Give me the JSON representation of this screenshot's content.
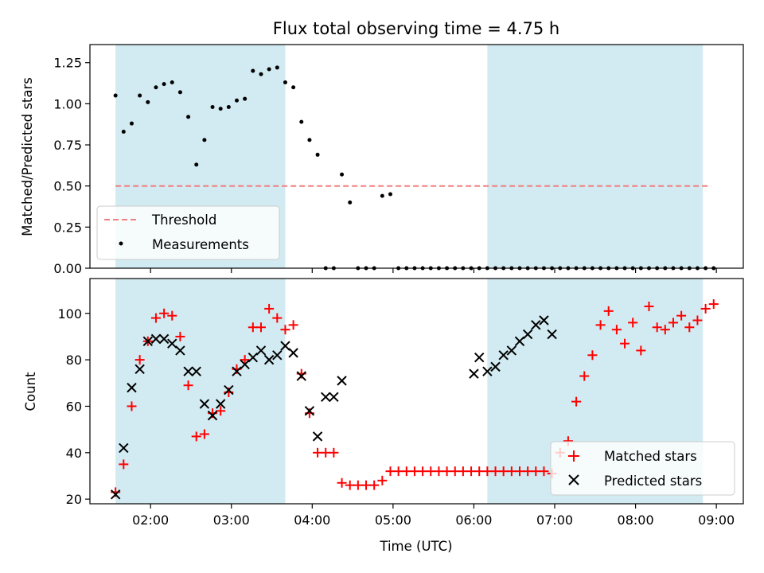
{
  "chart_data": [
    {
      "panel": "top",
      "type": "scatter",
      "title": "Flux total observing time = 4.75 h",
      "xlabel": "",
      "ylabel": "Matched/Predicted stars",
      "xlim": [
        "01:15",
        "09:20"
      ],
      "ylim": [
        0,
        1.36
      ],
      "yticks": [
        "0.00",
        "0.25",
        "0.50",
        "0.75",
        "1.00",
        "1.25"
      ],
      "xticks_labeled": false,
      "grid": false,
      "legend_position": "lower-left",
      "shaded_spans": [
        {
          "start": "01:34",
          "end": "03:40",
          "color": "#add8e6"
        },
        {
          "start": "06:10",
          "end": "08:50",
          "color": "#add8e6"
        }
      ],
      "threshold": {
        "name": "Threshold",
        "value": 0.5,
        "color": "#f08080",
        "style": "dashed",
        "x_start": "01:34",
        "x_end": "08:56"
      },
      "series": [
        {
          "name": "Measurements",
          "color": "#000000",
          "marker": "dot",
          "points": [
            [
              "01:34",
              1.05
            ],
            [
              "01:40",
              0.83
            ],
            [
              "01:46",
              0.88
            ],
            [
              "01:52",
              1.05
            ],
            [
              "01:58",
              1.01
            ],
            [
              "02:04",
              1.1
            ],
            [
              "02:10",
              1.12
            ],
            [
              "02:16",
              1.13
            ],
            [
              "02:22",
              1.07
            ],
            [
              "02:28",
              0.92
            ],
            [
              "02:34",
              0.63
            ],
            [
              "02:40",
              0.78
            ],
            [
              "02:46",
              0.98
            ],
            [
              "02:52",
              0.97
            ],
            [
              "02:58",
              0.98
            ],
            [
              "03:04",
              1.02
            ],
            [
              "03:10",
              1.03
            ],
            [
              "03:16",
              1.2
            ],
            [
              "03:22",
              1.18
            ],
            [
              "03:28",
              1.21
            ],
            [
              "03:34",
              1.22
            ],
            [
              "03:40",
              1.13
            ],
            [
              "03:46",
              1.1
            ],
            [
              "03:52",
              0.89
            ],
            [
              "03:58",
              0.78
            ],
            [
              "04:04",
              0.69
            ],
            [
              "04:10",
              0.0
            ],
            [
              "04:16",
              0.0
            ],
            [
              "04:22",
              0.57
            ],
            [
              "04:28",
              0.4
            ],
            [
              "04:34",
              0.0
            ],
            [
              "04:40",
              0.0
            ],
            [
              "04:46",
              0.0
            ],
            [
              "04:52",
              0.44
            ],
            [
              "04:58",
              0.45
            ],
            [
              "05:04",
              0.0
            ],
            [
              "05:10",
              0.0
            ],
            [
              "05:16",
              0.0
            ],
            [
              "05:22",
              0.0
            ],
            [
              "05:28",
              0.0
            ],
            [
              "05:34",
              0.0
            ],
            [
              "05:40",
              0.0
            ],
            [
              "05:46",
              0.0
            ],
            [
              "05:52",
              0.0
            ],
            [
              "05:58",
              0.0
            ],
            [
              "06:04",
              0.0
            ],
            [
              "06:10",
              0.0
            ],
            [
              "06:16",
              0.0
            ],
            [
              "06:22",
              0.0
            ],
            [
              "06:28",
              0.0
            ],
            [
              "06:34",
              0.0
            ],
            [
              "06:40",
              0.0
            ],
            [
              "06:46",
              0.0
            ],
            [
              "06:52",
              0.0
            ],
            [
              "06:58",
              0.0
            ],
            [
              "07:04",
              0.0
            ],
            [
              "07:10",
              0.0
            ],
            [
              "07:16",
              0.0
            ],
            [
              "07:22",
              0.0
            ],
            [
              "07:28",
              0.0
            ],
            [
              "07:34",
              0.0
            ],
            [
              "07:40",
              0.0
            ],
            [
              "07:46",
              0.0
            ],
            [
              "07:52",
              0.0
            ],
            [
              "07:58",
              0.0
            ],
            [
              "08:04",
              0.0
            ],
            [
              "08:10",
              0.0
            ],
            [
              "08:16",
              0.0
            ],
            [
              "08:22",
              0.0
            ],
            [
              "08:28",
              0.0
            ],
            [
              "08:34",
              0.0
            ],
            [
              "08:40",
              0.0
            ],
            [
              "08:46",
              0.0
            ],
            [
              "08:52",
              0.0
            ],
            [
              "08:58",
              0.0
            ]
          ]
        }
      ]
    },
    {
      "panel": "bottom",
      "type": "scatter",
      "title": "",
      "xlabel": "Time (UTC)",
      "ylabel": "Count",
      "xlim": [
        "01:15",
        "09:20"
      ],
      "ylim": [
        18,
        115
      ],
      "xticks": [
        "02:00",
        "03:00",
        "04:00",
        "05:00",
        "06:00",
        "07:00",
        "08:00",
        "09:00"
      ],
      "yticks": [
        "20",
        "40",
        "60",
        "80",
        "100"
      ],
      "grid": false,
      "legend_position": "lower-right",
      "shaded_spans": [
        {
          "start": "01:34",
          "end": "03:40",
          "color": "#add8e6"
        },
        {
          "start": "06:10",
          "end": "08:50",
          "color": "#add8e6"
        }
      ],
      "series": [
        {
          "name": "Matched stars",
          "color": "#ff0000",
          "marker": "plus",
          "points": [
            [
              "01:34",
              23
            ],
            [
              "01:40",
              35
            ],
            [
              "01:46",
              60
            ],
            [
              "01:52",
              80
            ],
            [
              "01:58",
              88
            ],
            [
              "02:04",
              98
            ],
            [
              "02:10",
              100
            ],
            [
              "02:16",
              99
            ],
            [
              "02:22",
              90
            ],
            [
              "02:28",
              69
            ],
            [
              "02:34",
              47
            ],
            [
              "02:40",
              48
            ],
            [
              "02:46",
              57
            ],
            [
              "02:52",
              58
            ],
            [
              "02:58",
              66
            ],
            [
              "03:04",
              76
            ],
            [
              "03:10",
              80
            ],
            [
              "03:16",
              94
            ],
            [
              "03:22",
              94
            ],
            [
              "03:28",
              102
            ],
            [
              "03:34",
              98
            ],
            [
              "03:40",
              93
            ],
            [
              "03:46",
              95
            ],
            [
              "03:52",
              74
            ],
            [
              "03:58",
              57
            ],
            [
              "04:04",
              40
            ],
            [
              "04:10",
              40
            ],
            [
              "04:16",
              40
            ],
            [
              "04:22",
              27
            ],
            [
              "04:28",
              26
            ],
            [
              "04:34",
              26
            ],
            [
              "04:40",
              26
            ],
            [
              "04:46",
              26
            ],
            [
              "04:52",
              28
            ],
            [
              "04:58",
              32
            ],
            [
              "05:04",
              32
            ],
            [
              "05:10",
              32
            ],
            [
              "05:16",
              32
            ],
            [
              "05:22",
              32
            ],
            [
              "05:28",
              32
            ],
            [
              "05:34",
              32
            ],
            [
              "05:40",
              32
            ],
            [
              "05:46",
              32
            ],
            [
              "05:52",
              32
            ],
            [
              "05:58",
              32
            ],
            [
              "06:04",
              32
            ],
            [
              "06:10",
              32
            ],
            [
              "06:16",
              32
            ],
            [
              "06:22",
              32
            ],
            [
              "06:28",
              32
            ],
            [
              "06:34",
              32
            ],
            [
              "06:40",
              32
            ],
            [
              "06:46",
              32
            ],
            [
              "06:52",
              32
            ],
            [
              "06:58",
              31
            ],
            [
              "07:04",
              40
            ],
            [
              "07:10",
              45
            ],
            [
              "07:16",
              62
            ],
            [
              "07:22",
              73
            ],
            [
              "07:28",
              82
            ],
            [
              "07:34",
              95
            ],
            [
              "07:40",
              101
            ],
            [
              "07:46",
              93
            ],
            [
              "07:52",
              87
            ],
            [
              "07:58",
              96
            ],
            [
              "08:04",
              84
            ],
            [
              "08:10",
              103
            ],
            [
              "08:16",
              94
            ],
            [
              "08:22",
              93
            ],
            [
              "08:28",
              96
            ],
            [
              "08:34",
              99
            ],
            [
              "08:40",
              94
            ],
            [
              "08:46",
              97
            ],
            [
              "08:52",
              102
            ],
            [
              "08:58",
              104
            ]
          ]
        },
        {
          "name": "Predicted stars",
          "color": "#000000",
          "marker": "x",
          "points": [
            [
              "01:34",
              22
            ],
            [
              "01:40",
              42
            ],
            [
              "01:46",
              68
            ],
            [
              "01:52",
              76
            ],
            [
              "01:58",
              88
            ],
            [
              "02:04",
              89
            ],
            [
              "02:10",
              89
            ],
            [
              "02:16",
              87
            ],
            [
              "02:22",
              84
            ],
            [
              "02:28",
              75
            ],
            [
              "02:34",
              75
            ],
            [
              "02:40",
              61
            ],
            [
              "02:46",
              56
            ],
            [
              "02:52",
              61
            ],
            [
              "02:58",
              67
            ],
            [
              "03:04",
              75
            ],
            [
              "03:10",
              78
            ],
            [
              "03:16",
              81
            ],
            [
              "03:22",
              84
            ],
            [
              "03:28",
              80
            ],
            [
              "03:34",
              82
            ],
            [
              "03:40",
              86
            ],
            [
              "03:46",
              83
            ],
            [
              "03:52",
              73
            ],
            [
              "03:58",
              58
            ],
            [
              "04:04",
              47
            ],
            [
              "04:10",
              64
            ],
            [
              "04:16",
              64
            ],
            [
              "04:22",
              71
            ],
            [
              "06:00",
              74
            ],
            [
              "06:04",
              81
            ],
            [
              "06:10",
              75
            ],
            [
              "06:16",
              77
            ],
            [
              "06:22",
              82
            ],
            [
              "06:28",
              84
            ],
            [
              "06:34",
              88
            ],
            [
              "06:40",
              91
            ],
            [
              "06:46",
              95
            ],
            [
              "06:52",
              97
            ],
            [
              "06:58",
              91
            ]
          ]
        }
      ]
    }
  ]
}
